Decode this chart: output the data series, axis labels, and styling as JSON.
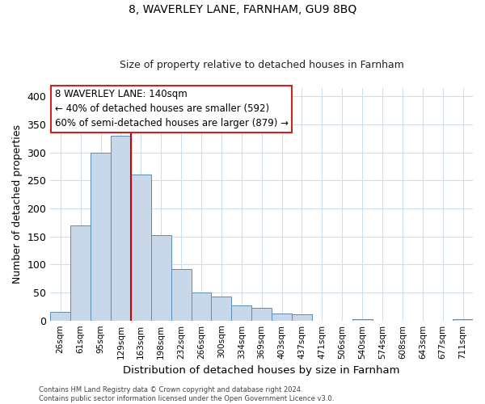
{
  "title": "8, WAVERLEY LANE, FARNHAM, GU9 8BQ",
  "subtitle": "Size of property relative to detached houses in Farnham",
  "xlabel": "Distribution of detached houses by size in Farnham",
  "ylabel": "Number of detached properties",
  "bar_labels": [
    "26sqm",
    "61sqm",
    "95sqm",
    "129sqm",
    "163sqm",
    "198sqm",
    "232sqm",
    "266sqm",
    "300sqm",
    "334sqm",
    "369sqm",
    "403sqm",
    "437sqm",
    "471sqm",
    "506sqm",
    "540sqm",
    "574sqm",
    "608sqm",
    "643sqm",
    "677sqm",
    "711sqm"
  ],
  "bar_values": [
    15,
    170,
    300,
    330,
    260,
    153,
    92,
    50,
    43,
    27,
    22,
    12,
    11,
    0,
    0,
    3,
    0,
    0,
    0,
    0,
    3
  ],
  "bar_color": "#c8d8e8",
  "bar_edgecolor": "#5b8db8",
  "vline_color": "#cc0000",
  "ylim": [
    0,
    415
  ],
  "yticks": [
    0,
    50,
    100,
    150,
    200,
    250,
    300,
    350,
    400
  ],
  "annotation_title": "8 WAVERLEY LANE: 140sqm",
  "annotation_line1": "← 40% of detached houses are smaller (592)",
  "annotation_line2": "60% of semi-detached houses are larger (879) →",
  "footer1": "Contains HM Land Registry data © Crown copyright and database right 2024.",
  "footer2": "Contains public sector information licensed under the Open Government Licence v3.0.",
  "plot_background": "#ffffff",
  "grid_color": "#ccddee",
  "title_fontsize": 10,
  "subtitle_fontsize": 9
}
